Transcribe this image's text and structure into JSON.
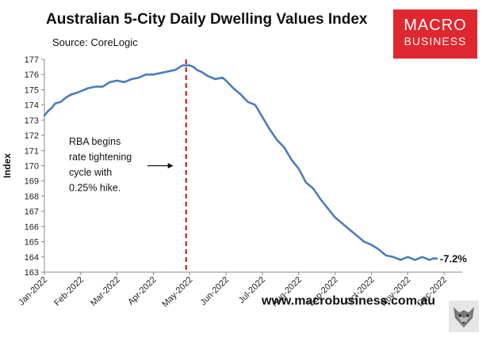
{
  "header": {
    "title": "Australian 5-City Daily Dwelling Values Index",
    "source": "Source: CoreLogic"
  },
  "logo": {
    "line1": "MACRO",
    "line2": "BUSINESS"
  },
  "footer": {
    "website": "www.macrobusiness.com.au"
  },
  "colors": {
    "series": "#4a7cbf",
    "event_line": "#e01a1a",
    "logo_bg": "#e0262f"
  },
  "chart_data": {
    "type": "line",
    "title": "Australian 5-City Daily Dwelling Values Index",
    "xlabel": "",
    "ylabel": "Index",
    "ylim": [
      163,
      177
    ],
    "yticks": [
      163,
      164,
      165,
      166,
      167,
      168,
      169,
      170,
      171,
      172,
      173,
      174,
      175,
      176,
      177
    ],
    "xlim": [
      0,
      11.5
    ],
    "xtick_labels": [
      "Jan-2022",
      "Feb-2022",
      "Mar-2022",
      "Apr-2022",
      "May-2022",
      "Jun-2022",
      "Jul-2022",
      "Aug-2022",
      "Sep-2022",
      "Oct-2022",
      "Nov-2022",
      "Dec-2022"
    ],
    "grid": false,
    "series": [
      {
        "name": "5-City Daily Dwelling Values Index",
        "x": [
          0,
          0.1,
          0.2,
          0.3,
          0.45,
          0.6,
          0.75,
          0.9,
          1.0,
          1.2,
          1.4,
          1.6,
          1.8,
          2.0,
          2.2,
          2.4,
          2.6,
          2.8,
          3.0,
          3.2,
          3.4,
          3.6,
          3.8,
          4.0,
          4.1,
          4.2,
          4.3,
          4.5,
          4.7,
          4.9,
          5.0,
          5.2,
          5.4,
          5.6,
          5.8,
          6.0,
          6.2,
          6.4,
          6.6,
          6.8,
          7.0,
          7.2,
          7.4,
          7.6,
          7.8,
          8.0,
          8.2,
          8.4,
          8.6,
          8.8,
          9.0,
          9.2,
          9.4,
          9.6,
          9.8,
          10.0,
          10.2,
          10.4,
          10.6,
          10.7,
          10.8
        ],
        "values": [
          173.3,
          173.6,
          173.8,
          174.1,
          174.2,
          174.5,
          174.7,
          174.8,
          174.9,
          175.1,
          175.2,
          175.2,
          175.5,
          175.6,
          175.5,
          175.7,
          175.8,
          176.0,
          176.0,
          176.1,
          176.2,
          176.3,
          176.6,
          176.6,
          176.5,
          176.3,
          176.2,
          175.9,
          175.7,
          175.8,
          175.6,
          175.1,
          174.7,
          174.2,
          174.0,
          173.2,
          172.4,
          171.7,
          171.2,
          170.4,
          169.8,
          168.9,
          168.5,
          167.8,
          167.2,
          166.6,
          166.2,
          165.8,
          165.4,
          165.0,
          164.8,
          164.5,
          164.1,
          164.0,
          163.8,
          164.0,
          163.8,
          164.0,
          163.8,
          163.9,
          163.9
        ]
      }
    ],
    "event_line_x": 3.9,
    "annotation": {
      "lines": [
        "RBA begins",
        "rate tightening",
        "cycle with",
        "0.25% hike."
      ],
      "arrow_target_x": 3.55,
      "arrow_y": 170.0
    },
    "end_label": "-7.2%"
  }
}
